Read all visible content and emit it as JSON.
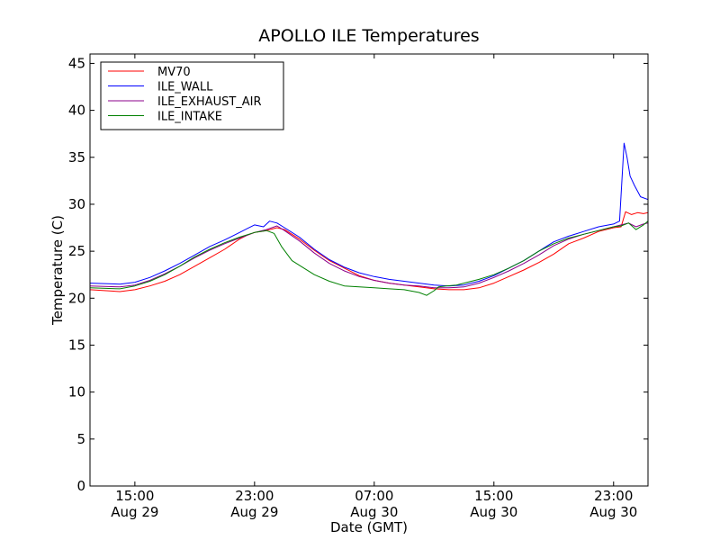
{
  "chart_data": {
    "type": "line",
    "title": "APOLLO ILE Temperatures",
    "xlabel": "Date (GMT)",
    "ylabel": "Temperature (C)",
    "ylim": [
      0,
      46
    ],
    "xlim_hours": [
      0,
      37.3
    ],
    "y_ticks": [
      0,
      5,
      10,
      15,
      20,
      25,
      30,
      35,
      40,
      45
    ],
    "x_ticks": [
      {
        "hour": 3,
        "time": "15:00",
        "date": "Aug 29"
      },
      {
        "hour": 11,
        "time": "23:00",
        "date": "Aug 29"
      },
      {
        "hour": 19,
        "time": "07:00",
        "date": "Aug 30"
      },
      {
        "hour": 27,
        "time": "15:00",
        "date": "Aug 30"
      },
      {
        "hour": 35,
        "time": "23:00",
        "date": "Aug 30"
      }
    ],
    "legend_position": "top-left",
    "series": [
      {
        "name": "MV70",
        "color": "#ff0000",
        "x": [
          0,
          2,
          3,
          4,
          5,
          6,
          7,
          8,
          9,
          10,
          10.5,
          11,
          11.8,
          12.5,
          13,
          14,
          15,
          16,
          17,
          18,
          19,
          20,
          21,
          22,
          23,
          24,
          25,
          26,
          27,
          28,
          29,
          30,
          31,
          32,
          33,
          34,
          35,
          35.5,
          35.8,
          36.2,
          36.6,
          37,
          37.3
        ],
        "y": [
          20.9,
          20.7,
          20.9,
          21.3,
          21.8,
          22.5,
          23.4,
          24.3,
          25.2,
          26.3,
          26.7,
          27.0,
          27.2,
          27.5,
          27.3,
          26.3,
          25.1,
          24.0,
          23.2,
          22.4,
          21.9,
          21.6,
          21.4,
          21.2,
          21.0,
          20.9,
          20.9,
          21.1,
          21.6,
          22.3,
          23.0,
          23.8,
          24.7,
          25.8,
          26.4,
          27.1,
          27.5,
          27.6,
          29.2,
          28.9,
          29.1,
          29.0,
          29.1
        ]
      },
      {
        "name": "ILE_WALL",
        "color": "#0000ff",
        "x": [
          0,
          2,
          3,
          4,
          5,
          6,
          7,
          8,
          9,
          10,
          10.5,
          11,
          11.6,
          12,
          12.5,
          13,
          14,
          15,
          16,
          17,
          18,
          19,
          20,
          21,
          22,
          23,
          24,
          25,
          26,
          27,
          28,
          29,
          30,
          31,
          32,
          33,
          34,
          35,
          35.4,
          35.7,
          35.9,
          36.1,
          36.4,
          36.8,
          37.3
        ],
        "y": [
          21.6,
          21.5,
          21.7,
          22.2,
          22.9,
          23.7,
          24.6,
          25.5,
          26.2,
          27.0,
          27.4,
          27.8,
          27.6,
          28.2,
          28.0,
          27.5,
          26.5,
          25.2,
          24.1,
          23.3,
          22.7,
          22.3,
          22.0,
          21.8,
          21.6,
          21.4,
          21.3,
          21.4,
          21.8,
          22.4,
          23.2,
          24.0,
          25.0,
          26.0,
          26.6,
          27.1,
          27.6,
          27.9,
          28.2,
          36.5,
          35.0,
          33.0,
          32.0,
          30.8,
          30.5
        ]
      },
      {
        "name": "ILE_EXHAUST_AIR",
        "color": "#8b008b",
        "x": [
          0,
          2,
          3,
          4,
          5,
          6,
          7,
          8,
          9,
          10,
          11,
          11.8,
          12.5,
          13,
          14,
          15,
          16,
          17,
          18,
          19,
          20,
          21,
          22,
          23,
          24,
          25,
          26,
          27,
          28,
          29,
          30,
          31,
          32,
          33,
          34,
          35,
          35.5,
          36,
          36.5,
          37,
          37.3
        ],
        "y": [
          21.3,
          21.2,
          21.4,
          21.9,
          22.6,
          23.4,
          24.3,
          25.1,
          25.8,
          26.4,
          27.0,
          27.3,
          27.7,
          27.2,
          26.1,
          24.8,
          23.7,
          22.9,
          22.3,
          21.9,
          21.6,
          21.4,
          21.3,
          21.1,
          21.1,
          21.2,
          21.6,
          22.2,
          22.9,
          23.7,
          24.6,
          25.6,
          26.3,
          26.8,
          27.2,
          27.6,
          27.8,
          28.0,
          27.6,
          27.9,
          28.0
        ]
      },
      {
        "name": "ILE_INTAKE",
        "color": "#008000",
        "x": [
          0,
          2,
          3,
          4,
          5,
          6,
          7,
          8,
          9,
          10,
          11,
          11.8,
          12.3,
          12.8,
          13.5,
          14,
          15,
          16,
          17,
          18,
          19,
          20,
          21,
          22,
          22.5,
          23,
          23.3,
          23.8,
          24.5,
          25,
          26,
          27,
          28,
          29,
          30,
          31,
          32,
          33,
          34,
          35,
          35.5,
          36,
          36.5,
          37,
          37.3
        ],
        "y": [
          21.1,
          21.0,
          21.3,
          21.8,
          22.5,
          23.4,
          24.4,
          25.2,
          25.9,
          26.5,
          27.0,
          27.2,
          26.9,
          25.5,
          24.0,
          23.5,
          22.5,
          21.8,
          21.3,
          21.2,
          21.1,
          21.0,
          20.9,
          20.6,
          20.3,
          20.8,
          21.2,
          21.3,
          21.4,
          21.6,
          22.0,
          22.5,
          23.2,
          24.0,
          25.0,
          25.8,
          26.4,
          26.8,
          27.2,
          27.6,
          27.7,
          28.0,
          27.3,
          27.8,
          28.2
        ]
      }
    ]
  }
}
